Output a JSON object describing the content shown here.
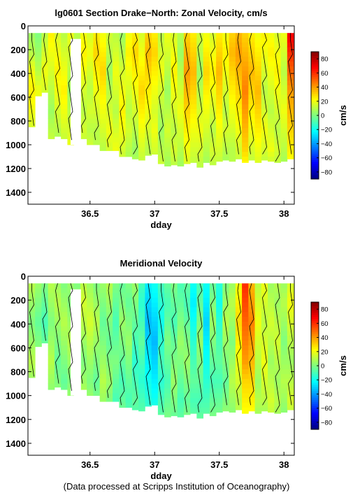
{
  "colors": {
    "cmap": [
      "#00007f",
      "#0000ff",
      "#007fff",
      "#00ffff",
      "#7fff7f",
      "#ffff00",
      "#ff7f00",
      "#ff0000",
      "#7f0000"
    ],
    "contour": "#000000",
    "no_data": "#ffffff"
  },
  "footer": "(Data processed at Scripps Institution of Oceanography)",
  "chart_data": [
    {
      "type": "heatmap",
      "title": "lg0601 Section Drake−North: Zonal Velocity, cm/s",
      "xlabel": "dday",
      "ylabel": "",
      "xlim": [
        36.02,
        38.08
      ],
      "ylim": [
        1500,
        0
      ],
      "xticks": [
        "36.5",
        "37",
        "37.5",
        "38"
      ],
      "yticks": [
        "0",
        "200",
        "400",
        "600",
        "800",
        "1000",
        "1200",
        "1400"
      ],
      "colorbar": {
        "label": "cm/s",
        "range": [
          -90,
          90
        ],
        "ticks": [
          "80",
          "60",
          "40",
          "20",
          "0",
          "−20",
          "−40",
          "−60",
          "−80"
        ]
      },
      "cells": {
        "x": [
          36.05,
          36.1,
          36.15,
          36.2,
          36.25,
          36.3,
          36.35,
          36.4,
          36.45,
          36.5,
          36.55,
          36.6,
          36.65,
          36.7,
          36.75,
          36.8,
          36.85,
          36.9,
          36.95,
          37.0,
          37.05,
          37.1,
          37.15,
          37.2,
          37.25,
          37.3,
          37.35,
          37.4,
          37.45,
          37.5,
          37.55,
          37.6,
          37.65,
          37.7,
          37.75,
          37.8,
          37.85,
          37.9,
          37.95,
          38.0,
          38.05
        ],
        "bottom_depth": [
          850,
          590,
          560,
          950,
          930,
          950,
          1000,
          430,
          950,
          1000,
          1000,
          1050,
          1050,
          1050,
          1100,
          1100,
          1120,
          1130,
          1090,
          1080,
          1160,
          1180,
          1170,
          1180,
          1160,
          1150,
          1190,
          1150,
          1170,
          1140,
          1130,
          1140,
          1120,
          1150,
          1130,
          1150,
          1130,
          1140,
          1150,
          1140,
          1120
        ],
        "top_depth": 60,
        "gaps": [
          [
            36.35,
            36.43,
            110
          ]
        ],
        "velocity": [
          [
            5,
            10,
            20,
            25,
            20,
            15,
            10,
            5
          ],
          [
            0,
            5,
            10,
            20,
            15,
            10,
            5,
            0
          ],
          [
            10,
            15,
            20,
            15,
            10,
            10,
            5,
            0
          ],
          [
            25,
            20,
            15,
            10,
            5,
            10,
            15,
            10
          ],
          [
            15,
            20,
            25,
            20,
            15,
            10,
            5,
            5
          ],
          [
            10,
            15,
            20,
            25,
            20,
            15,
            10,
            10
          ],
          [
            20,
            15,
            10,
            5,
            10,
            15,
            20,
            15
          ],
          [
            10,
            10,
            5,
            5,
            0,
            0,
            0,
            0
          ],
          [
            20,
            25,
            20,
            15,
            10,
            15,
            10,
            5
          ],
          [
            15,
            20,
            15,
            10,
            15,
            10,
            15,
            10
          ],
          [
            25,
            30,
            25,
            20,
            15,
            10,
            10,
            15
          ],
          [
            20,
            25,
            30,
            25,
            20,
            15,
            10,
            10
          ],
          [
            15,
            10,
            5,
            10,
            15,
            20,
            15,
            10
          ],
          [
            10,
            15,
            20,
            15,
            10,
            15,
            20,
            10
          ],
          [
            5,
            10,
            15,
            20,
            25,
            20,
            15,
            10
          ],
          [
            20,
            25,
            20,
            15,
            10,
            15,
            10,
            5
          ],
          [
            25,
            30,
            25,
            20,
            15,
            10,
            5,
            10
          ],
          [
            15,
            20,
            25,
            30,
            25,
            20,
            15,
            10
          ],
          [
            30,
            35,
            30,
            25,
            20,
            15,
            10,
            10
          ],
          [
            25,
            30,
            25,
            20,
            15,
            20,
            15,
            10
          ],
          [
            10,
            15,
            20,
            15,
            10,
            5,
            10,
            15
          ],
          [
            20,
            15,
            10,
            5,
            10,
            15,
            10,
            5
          ],
          [
            15,
            20,
            25,
            20,
            15,
            10,
            15,
            10
          ],
          [
            10,
            5,
            10,
            15,
            20,
            15,
            10,
            5
          ],
          [
            30,
            35,
            40,
            35,
            30,
            25,
            20,
            15
          ],
          [
            25,
            30,
            35,
            30,
            25,
            20,
            15,
            10
          ],
          [
            15,
            10,
            5,
            10,
            15,
            20,
            15,
            10
          ],
          [
            20,
            25,
            30,
            25,
            20,
            15,
            10,
            5
          ],
          [
            15,
            20,
            25,
            20,
            15,
            10,
            15,
            10
          ],
          [
            25,
            30,
            35,
            30,
            25,
            20,
            15,
            10
          ],
          [
            20,
            25,
            20,
            15,
            10,
            15,
            10,
            5
          ],
          [
            30,
            35,
            30,
            25,
            20,
            15,
            10,
            10
          ],
          [
            35,
            40,
            35,
            30,
            25,
            20,
            15,
            10
          ],
          [
            30,
            35,
            40,
            45,
            40,
            35,
            30,
            20
          ],
          [
            25,
            30,
            35,
            30,
            25,
            20,
            15,
            10
          ],
          [
            20,
            25,
            30,
            35,
            30,
            25,
            20,
            15
          ],
          [
            25,
            20,
            15,
            10,
            15,
            20,
            15,
            10
          ],
          [
            20,
            25,
            20,
            15,
            10,
            15,
            20,
            10
          ],
          [
            15,
            20,
            25,
            20,
            15,
            10,
            15,
            10
          ],
          [
            20,
            15,
            10,
            15,
            20,
            15,
            10,
            5
          ],
          [
            70,
            60,
            50,
            40,
            35,
            30,
            25,
            20
          ]
        ]
      }
    },
    {
      "type": "heatmap",
      "title": "Meridional Velocity",
      "xlabel": "dday",
      "ylabel": "",
      "xlim": [
        36.02,
        38.08
      ],
      "ylim": [
        1500,
        0
      ],
      "xticks": [
        "36.5",
        "37",
        "37.5",
        "38"
      ],
      "yticks": [
        "0",
        "200",
        "400",
        "600",
        "800",
        "1000",
        "1200",
        "1400"
      ],
      "colorbar": {
        "label": "cm/s",
        "range": [
          -90,
          90
        ],
        "ticks": [
          "80",
          "60",
          "40",
          "20",
          "0",
          "−20",
          "−40",
          "−60",
          "−80"
        ]
      },
      "cells": {
        "x": [
          36.05,
          36.1,
          36.15,
          36.2,
          36.25,
          36.3,
          36.35,
          36.4,
          36.45,
          36.5,
          36.55,
          36.6,
          36.65,
          36.7,
          36.75,
          36.8,
          36.85,
          36.9,
          36.95,
          37.0,
          37.05,
          37.1,
          37.15,
          37.2,
          37.25,
          37.3,
          37.35,
          37.4,
          37.45,
          37.5,
          37.55,
          37.6,
          37.65,
          37.7,
          37.75,
          37.8,
          37.85,
          37.9,
          37.95,
          38.0,
          38.05
        ],
        "bottom_depth": [
          850,
          590,
          560,
          950,
          930,
          950,
          1000,
          430,
          950,
          1000,
          1000,
          1050,
          1050,
          1050,
          1100,
          1100,
          1120,
          1130,
          1090,
          1080,
          1160,
          1180,
          1170,
          1180,
          1160,
          1150,
          1190,
          1150,
          1170,
          1140,
          1130,
          1140,
          1120,
          1150,
          1130,
          1150,
          1130,
          1140,
          1150,
          1140,
          1120
        ],
        "top_depth": 60,
        "gaps": [
          [
            36.35,
            36.43,
            110
          ]
        ],
        "velocity": [
          [
            10,
            5,
            0,
            5,
            10,
            5,
            0,
            5
          ],
          [
            5,
            0,
            -5,
            0,
            5,
            0,
            5,
            10
          ],
          [
            0,
            -5,
            -10,
            -5,
            0,
            5,
            0,
            0
          ],
          [
            10,
            5,
            0,
            5,
            10,
            5,
            0,
            5
          ],
          [
            5,
            10,
            5,
            0,
            -5,
            0,
            5,
            0
          ],
          [
            0,
            5,
            10,
            5,
            0,
            -5,
            0,
            5
          ],
          [
            5,
            0,
            5,
            10,
            5,
            0,
            5,
            0
          ],
          [
            0,
            5,
            0,
            0,
            0,
            0,
            0,
            0
          ],
          [
            10,
            15,
            10,
            5,
            0,
            5,
            10,
            5
          ],
          [
            5,
            10,
            15,
            10,
            5,
            0,
            5,
            0
          ],
          [
            0,
            5,
            10,
            5,
            0,
            -5,
            0,
            5
          ],
          [
            5,
            0,
            -5,
            0,
            5,
            10,
            5,
            0
          ],
          [
            10,
            5,
            0,
            -5,
            0,
            5,
            0,
            -5
          ],
          [
            0,
            -5,
            -10,
            -5,
            0,
            -5,
            -10,
            -5
          ],
          [
            -5,
            0,
            5,
            0,
            -5,
            -10,
            -5,
            0
          ],
          [
            0,
            -5,
            0,
            5,
            0,
            -5,
            -10,
            -5
          ],
          [
            5,
            0,
            -5,
            -10,
            -15,
            -10,
            -5,
            -10
          ],
          [
            -10,
            -15,
            -10,
            -5,
            -10,
            -15,
            -10,
            -5
          ],
          [
            -25,
            -30,
            -35,
            -30,
            -25,
            -20,
            -15,
            -10
          ],
          [
            -20,
            -25,
            -30,
            -35,
            -30,
            -25,
            -20,
            -15
          ],
          [
            -10,
            -15,
            -20,
            -15,
            -10,
            -15,
            -10,
            -5
          ],
          [
            -5,
            -10,
            -5,
            0,
            -5,
            -10,
            -5,
            0
          ],
          [
            0,
            -5,
            -10,
            -5,
            0,
            5,
            0,
            -5
          ],
          [
            -10,
            -5,
            0,
            5,
            0,
            -5,
            -10,
            -5
          ],
          [
            -5,
            -10,
            -5,
            0,
            5,
            0,
            -5,
            0
          ],
          [
            -20,
            -25,
            -20,
            -15,
            -10,
            -5,
            -10,
            -5
          ],
          [
            -10,
            -5,
            0,
            5,
            0,
            -5,
            -10,
            -5
          ],
          [
            -20,
            -25,
            -30,
            -25,
            -20,
            -15,
            -10,
            -5
          ],
          [
            -5,
            0,
            5,
            0,
            -5,
            -10,
            -5,
            0
          ],
          [
            -15,
            -20,
            -15,
            -10,
            -5,
            -10,
            -5,
            0
          ],
          [
            0,
            5,
            10,
            5,
            0,
            -5,
            0,
            5
          ],
          [
            5,
            10,
            5,
            0,
            5,
            10,
            5,
            0
          ],
          [
            20,
            25,
            30,
            25,
            20,
            15,
            10,
            10
          ],
          [
            60,
            55,
            50,
            45,
            40,
            30,
            25,
            20
          ],
          [
            35,
            40,
            45,
            40,
            35,
            30,
            25,
            20
          ],
          [
            10,
            15,
            20,
            15,
            10,
            5,
            10,
            5
          ],
          [
            20,
            15,
            10,
            15,
            20,
            15,
            10,
            5
          ],
          [
            5,
            10,
            15,
            10,
            5,
            10,
            15,
            10
          ],
          [
            10,
            5,
            10,
            15,
            10,
            5,
            10,
            5
          ],
          [
            5,
            10,
            5,
            0,
            5,
            10,
            5,
            0
          ],
          [
            15,
            20,
            15,
            10,
            5,
            10,
            15,
            10
          ]
        ]
      }
    }
  ]
}
